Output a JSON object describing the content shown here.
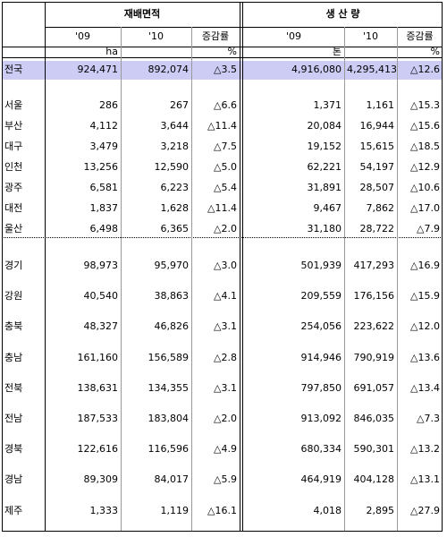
{
  "groups": [
    {
      "title": "재배면적",
      "columns": [
        "'09",
        "'10",
        "증감률"
      ],
      "value_unit": "ha",
      "rate_unit": "%"
    },
    {
      "title": "생 산 량",
      "columns": [
        "'09",
        "'10",
        "증감률"
      ],
      "value_unit": "톤",
      "rate_unit": "%"
    }
  ],
  "total": [
    "전국",
    "924,471",
    "892,074",
    "△3.5",
    "4,916,080",
    "4,295,413",
    "△12.6"
  ],
  "cities": [
    [
      "서울",
      "286",
      "267",
      "△6.6",
      "1,371",
      "1,161",
      "△15.3"
    ],
    [
      "부산",
      "4,112",
      "3,644",
      "△11.4",
      "20,084",
      "16,944",
      "△15.6"
    ],
    [
      "대구",
      "3,479",
      "3,218",
      "△7.5",
      "19,152",
      "15,615",
      "△18.5"
    ],
    [
      "인천",
      "13,256",
      "12,590",
      "△5.0",
      "62,221",
      "54,197",
      "△12.9"
    ],
    [
      "광주",
      "6,581",
      "6,223",
      "△5.4",
      "31,891",
      "28,507",
      "△10.6"
    ],
    [
      "대전",
      "1,837",
      "1,628",
      "△11.4",
      "9,467",
      "7,862",
      "△17.0"
    ],
    [
      "울산",
      "6,498",
      "6,365",
      "△2.0",
      "31,180",
      "28,722",
      "△7.9"
    ]
  ],
  "provinces": [
    [
      "경기",
      "98,973",
      "95,970",
      "△3.0",
      "501,939",
      "417,293",
      "△16.9"
    ],
    [
      "강원",
      "40,540",
      "38,863",
      "△4.1",
      "209,559",
      "176,156",
      "△15.9"
    ],
    [
      "충북",
      "48,327",
      "46,826",
      "△3.1",
      "254,056",
      "223,622",
      "△12.0"
    ],
    [
      "충남",
      "161,160",
      "156,589",
      "△2.8",
      "914,946",
      "790,919",
      "△13.6"
    ],
    [
      "전북",
      "138,631",
      "134,355",
      "△3.1",
      "797,850",
      "691,057",
      "△13.4"
    ],
    [
      "전남",
      "187,533",
      "183,804",
      "△2.0",
      "913,092",
      "846,035",
      "△7.3"
    ],
    [
      "경북",
      "122,616",
      "116,596",
      "△4.9",
      "680,334",
      "590,301",
      "△13.2"
    ],
    [
      "경남",
      "89,309",
      "84,017",
      "△5.9",
      "464,919",
      "404,128",
      "△13.1"
    ],
    [
      "제주",
      "1,333",
      "1,119",
      "△16.1",
      "4,018",
      "2,895",
      "△27.9"
    ]
  ]
}
